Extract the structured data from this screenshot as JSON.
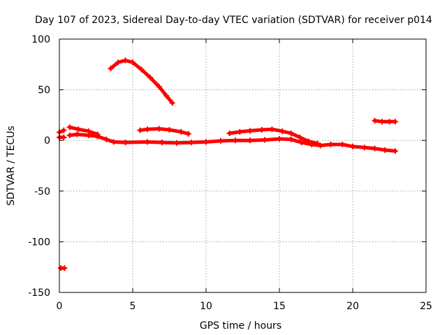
{
  "chart_data": {
    "type": "scatter",
    "title": "Day 107 of 2023, Sidereal Day-to-day VTEC variation (SDTVAR) for receiver p014",
    "xlabel": "GPS time / hours",
    "ylabel": "SDTVAR / TECUs",
    "xlim": [
      0,
      25
    ],
    "ylim": [
      -150,
      100
    ],
    "xticks": [
      0,
      5,
      10,
      15,
      20,
      25
    ],
    "yticks": [
      100,
      50,
      0,
      -50,
      -100,
      -150
    ],
    "xtick_labels": [
      "0",
      "5",
      "10",
      "15",
      "20",
      "25"
    ],
    "ytick_labels": [
      "100",
      "50",
      "0",
      "-50",
      "-100",
      "-150"
    ],
    "grid": true,
    "series": [
      {
        "name": "SDTVAR",
        "color": "#ff0000",
        "marker": "+",
        "segments": [
          [
            [
              0.0,
              3
            ],
            [
              0.3,
              3
            ]
          ],
          [
            [
              0.0,
              8
            ],
            [
              0.3,
              10
            ]
          ],
          [
            [
              0.1,
              -126
            ],
            [
              0.35,
              -126
            ]
          ],
          [
            [
              0.7,
              5
            ],
            [
              1.2,
              6
            ],
            [
              2.0,
              5
            ],
            [
              2.6,
              4
            ],
            [
              3.2,
              1
            ],
            [
              3.7,
              -1.5
            ],
            [
              4.5,
              -2
            ],
            [
              6.0,
              -1.5
            ],
            [
              7.0,
              -2
            ],
            [
              8.0,
              -2.5
            ],
            [
              9.0,
              -2
            ],
            [
              10.0,
              -1.5
            ],
            [
              11.0,
              -0.5
            ],
            [
              12.0,
              0
            ],
            [
              13.0,
              0
            ],
            [
              14.0,
              0.5
            ],
            [
              15.0,
              1.5
            ],
            [
              15.8,
              1
            ],
            [
              16.5,
              -2
            ],
            [
              17.2,
              -4
            ],
            [
              17.8,
              -5
            ],
            [
              18.5,
              -4
            ],
            [
              19.3,
              -4
            ],
            [
              20.0,
              -6
            ],
            [
              20.8,
              -7
            ],
            [
              21.5,
              -8
            ],
            [
              22.2,
              -9.5
            ],
            [
              22.9,
              -10.5
            ]
          ],
          [
            [
              0.7,
              13
            ],
            [
              1.3,
              11
            ],
            [
              2.0,
              9
            ],
            [
              2.6,
              6
            ]
          ],
          [
            [
              3.5,
              71
            ],
            [
              4.0,
              77
            ],
            [
              4.5,
              79
            ],
            [
              5.0,
              77
            ],
            [
              5.6,
              70
            ],
            [
              6.2,
              62
            ],
            [
              6.8,
              53
            ],
            [
              7.3,
              44
            ],
            [
              7.7,
              37
            ]
          ],
          [
            [
              5.5,
              10
            ],
            [
              6.0,
              11
            ],
            [
              6.8,
              11.5
            ],
            [
              7.5,
              10.5
            ],
            [
              8.3,
              8.5
            ],
            [
              8.8,
              6.5
            ]
          ],
          [
            [
              11.6,
              7
            ],
            [
              12.3,
              8.5
            ],
            [
              13.0,
              9.5
            ],
            [
              13.8,
              10.5
            ],
            [
              14.5,
              11
            ],
            [
              15.2,
              9
            ],
            [
              15.8,
              7
            ],
            [
              16.4,
              3
            ],
            [
              17.0,
              -1
            ],
            [
              17.6,
              -3
            ]
          ],
          [
            [
              21.5,
              19.5
            ],
            [
              22.0,
              18.5
            ],
            [
              22.5,
              18.5
            ],
            [
              22.9,
              18.5
            ]
          ]
        ]
      }
    ]
  }
}
